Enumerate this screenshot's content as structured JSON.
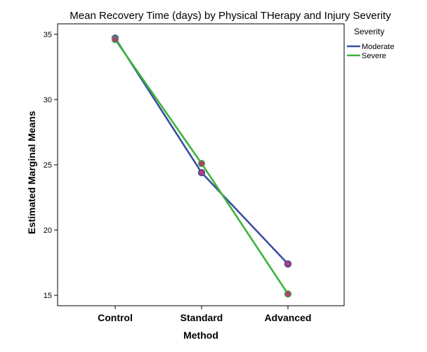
{
  "chart_data": {
    "type": "line",
    "title": "Mean Recovery Time (days) by Physical THerapy and Injury Severity",
    "xlabel": "Method",
    "ylabel": "Estimated Marginal Means",
    "categories": [
      "Control",
      "Standard",
      "Advanced"
    ],
    "yticks": [
      15,
      20,
      25,
      30,
      35
    ],
    "ylim": [
      14.2,
      35.8
    ],
    "grid": false,
    "legend": {
      "title": "Severity",
      "position": "top-right"
    },
    "series": [
      {
        "name": "Moderate",
        "values": [
          34.7,
          24.4,
          17.4
        ],
        "color": "#3c4ea0"
      },
      {
        "name": "Severe",
        "values": [
          34.6,
          25.1,
          15.1
        ],
        "color": "#3cb43c"
      }
    ],
    "marker_color": "#b03c7c"
  }
}
